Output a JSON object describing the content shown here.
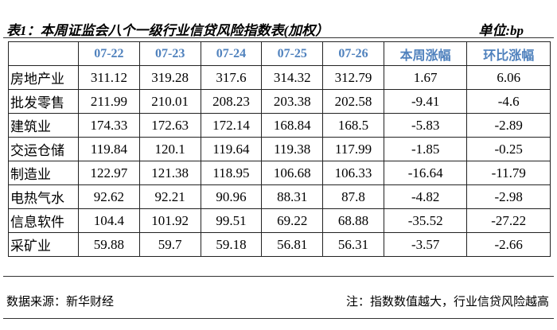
{
  "header": {
    "title": "表1：本周证监会八个一级行业信贷风险指数表(加权）",
    "unit": "单位:bp"
  },
  "table": {
    "columns": [
      "",
      "07-22",
      "07-23",
      "07-24",
      "07-25",
      "07-26",
      "本周涨幅",
      "环比涨幅"
    ],
    "rows": [
      [
        "房地产业",
        311.12,
        319.28,
        317.6,
        314.32,
        312.79,
        1.67,
        6.06
      ],
      [
        "批发零售",
        211.99,
        210.01,
        208.23,
        203.38,
        202.58,
        -9.41,
        -4.6
      ],
      [
        "建筑业",
        174.33,
        172.63,
        172.14,
        168.84,
        168.5,
        -5.83,
        -2.89
      ],
      [
        "交运仓储",
        119.84,
        120.1,
        119.64,
        119.38,
        117.99,
        -1.85,
        -0.25
      ],
      [
        "制造业",
        122.97,
        121.38,
        118.95,
        106.68,
        106.33,
        -16.64,
        -11.79
      ],
      [
        "电热气水",
        92.62,
        92.21,
        90.96,
        88.31,
        87.8,
        -4.82,
        -2.98
      ],
      [
        "信息软件",
        104.4,
        101.92,
        99.51,
        69.22,
        68.88,
        -35.52,
        -27.22
      ],
      [
        "采矿业",
        59.88,
        59.7,
        59.18,
        56.81,
        56.31,
        -3.57,
        -2.66
      ]
    ]
  },
  "footer": {
    "source": "数据来源：新华财经",
    "note": "注：指数数值越大，行业信贷风险越高"
  }
}
